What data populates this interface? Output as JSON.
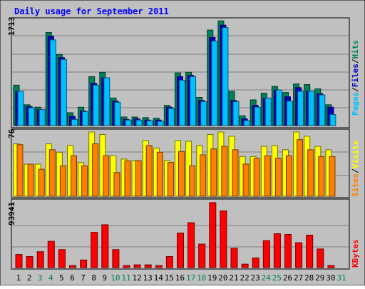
{
  "chart_data": [
    {
      "type": "bar",
      "panel": "hits",
      "title": "Daily usage for September 2011",
      "ylabel_max": "1713",
      "right_label": [
        "Pages",
        "/",
        "Files",
        "/",
        "Hits"
      ],
      "categories": [
        "1",
        "2",
        "3",
        "4",
        "5",
        "6",
        "7",
        "8",
        "9",
        "10",
        "11",
        "12",
        "13",
        "14",
        "15",
        "16",
        "17",
        "18",
        "19",
        "20",
        "21",
        "22",
        "23",
        "24",
        "25",
        "26",
        "27",
        "28",
        "29",
        "30",
        "31"
      ],
      "weekend_days": [
        "3",
        "4",
        "10",
        "11",
        "17",
        "18",
        "24",
        "25",
        "31"
      ],
      "ylim": [
        0,
        1713
      ],
      "series": [
        {
          "name": "Hits",
          "color": "#00805c",
          "values": [
            660,
            340,
            300,
            1520,
            1160,
            210,
            300,
            800,
            870,
            450,
            140,
            140,
            130,
            120,
            330,
            860,
            870,
            460,
            1560,
            1710,
            560,
            160,
            420,
            530,
            640,
            540,
            680,
            670,
            600,
            340,
            0
          ]
        },
        {
          "name": "Files",
          "color": "#0000c0",
          "values": [
            560,
            310,
            260,
            1460,
            1110,
            150,
            240,
            690,
            780,
            400,
            100,
            110,
            90,
            90,
            300,
            800,
            820,
            410,
            1440,
            1640,
            410,
            110,
            330,
            450,
            580,
            470,
            620,
            560,
            520,
            300,
            0
          ]
        },
        {
          "name": "Pages",
          "color": "#00c0ff",
          "values": [
            560,
            290,
            260,
            1400,
            1080,
            100,
            230,
            660,
            780,
            380,
            90,
            90,
            80,
            70,
            280,
            740,
            800,
            390,
            1380,
            1600,
            390,
            80,
            300,
            450,
            580,
            400,
            560,
            560,
            500,
            180,
            0
          ]
        }
      ]
    },
    {
      "type": "bar",
      "panel": "visits",
      "ylabel_max": "76",
      "right_label": [
        "Sites",
        "/",
        "Visits"
      ],
      "categories": [
        "1",
        "2",
        "3",
        "4",
        "5",
        "6",
        "7",
        "8",
        "9",
        "10",
        "11",
        "12",
        "13",
        "14",
        "15",
        "16",
        "17",
        "18",
        "19",
        "20",
        "21",
        "22",
        "23",
        "24",
        "25",
        "26",
        "27",
        "28",
        "29",
        "30",
        "31"
      ],
      "ylim": [
        0,
        76
      ],
      "series": [
        {
          "name": "Visits",
          "color": "#ffff00",
          "values": [
            62,
            38,
            38,
            62,
            52,
            60,
            40,
            76,
            73,
            48,
            44,
            42,
            66,
            57,
            42,
            66,
            65,
            60,
            73,
            76,
            71,
            47,
            47,
            59,
            60,
            55,
            76,
            71,
            59,
            55,
            0
          ]
        },
        {
          "name": "Sites",
          "color": "#ff8000",
          "values": [
            61,
            38,
            32,
            55,
            36,
            48,
            36,
            62,
            48,
            28,
            42,
            42,
            60,
            52,
            40,
            53,
            36,
            49,
            56,
            59,
            55,
            38,
            45,
            48,
            45,
            48,
            67,
            55,
            47,
            47,
            0
          ]
        }
      ]
    },
    {
      "type": "bar",
      "panel": "kbytes",
      "ylabel_max": "93941",
      "right_label": [
        "KBytes"
      ],
      "categories": [
        "1",
        "2",
        "3",
        "4",
        "5",
        "6",
        "7",
        "8",
        "9",
        "10",
        "11",
        "12",
        "13",
        "14",
        "15",
        "16",
        "17",
        "18",
        "19",
        "20",
        "21",
        "22",
        "23",
        "24",
        "25",
        "26",
        "27",
        "28",
        "29",
        "30",
        "31"
      ],
      "ylim": [
        0,
        93941
      ],
      "series": [
        {
          "name": "KBytes",
          "color": "#ff0000",
          "values": [
            19000,
            16000,
            23000,
            38000,
            26000,
            3000,
            11000,
            51000,
            62000,
            26000,
            3000,
            4000,
            4000,
            3000,
            16000,
            50000,
            65000,
            34000,
            94000,
            82000,
            28000,
            5000,
            14000,
            39000,
            49000,
            48000,
            36000,
            47000,
            27000,
            3000,
            0
          ]
        }
      ]
    }
  ]
}
